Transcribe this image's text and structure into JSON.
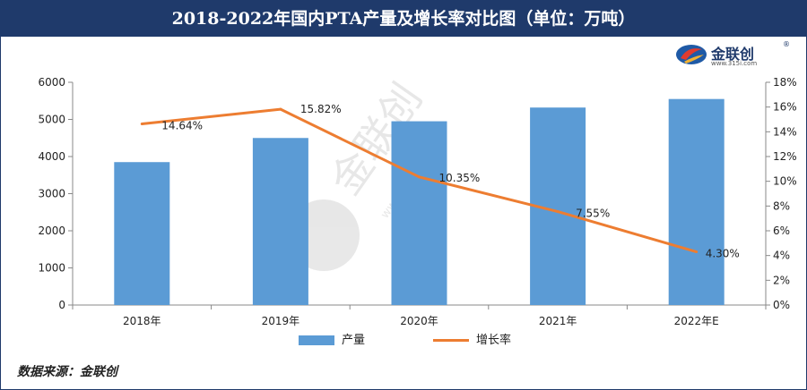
{
  "title": "2018-2022年国内PTA产量及增长率对比图（单位：万吨）",
  "logo": {
    "name": "金联创",
    "reg": "®",
    "url": "www.315i.com"
  },
  "source_text": "数据来源：金联创",
  "colors": {
    "bar": "#5b9bd5",
    "line": "#ed7d31",
    "title_bg": "#1f3a6b",
    "watermark": "#c8c8c8"
  },
  "chart_data": {
    "type": "bar+line",
    "title": "2018-2022年国内PTA产量及增长率对比图（单位：万吨）",
    "categories": [
      "2018年",
      "2019年",
      "2020年",
      "2021年",
      "2022年E"
    ],
    "series": [
      {
        "name": "产量",
        "type": "bar",
        "axis": "left",
        "values": [
          3850,
          4500,
          4950,
          5320,
          5550
        ]
      },
      {
        "name": "增长率",
        "type": "line",
        "axis": "right",
        "values": [
          14.64,
          15.82,
          10.35,
          7.55,
          4.3
        ],
        "labels": [
          "14.64%",
          "15.82%",
          "10.35%",
          "7.55%",
          "4.30%"
        ]
      }
    ],
    "y_left": {
      "min": 0,
      "max": 6000,
      "ticks": [
        "0",
        "1000",
        "2000",
        "3000",
        "4000",
        "5000",
        "6000"
      ]
    },
    "y_right": {
      "min": 0,
      "max": 18,
      "ticks": [
        "0%",
        "2%",
        "4%",
        "6%",
        "8%",
        "10%",
        "12%",
        "14%",
        "16%",
        "18%"
      ]
    },
    "legend_position": "bottom",
    "grid": false
  }
}
